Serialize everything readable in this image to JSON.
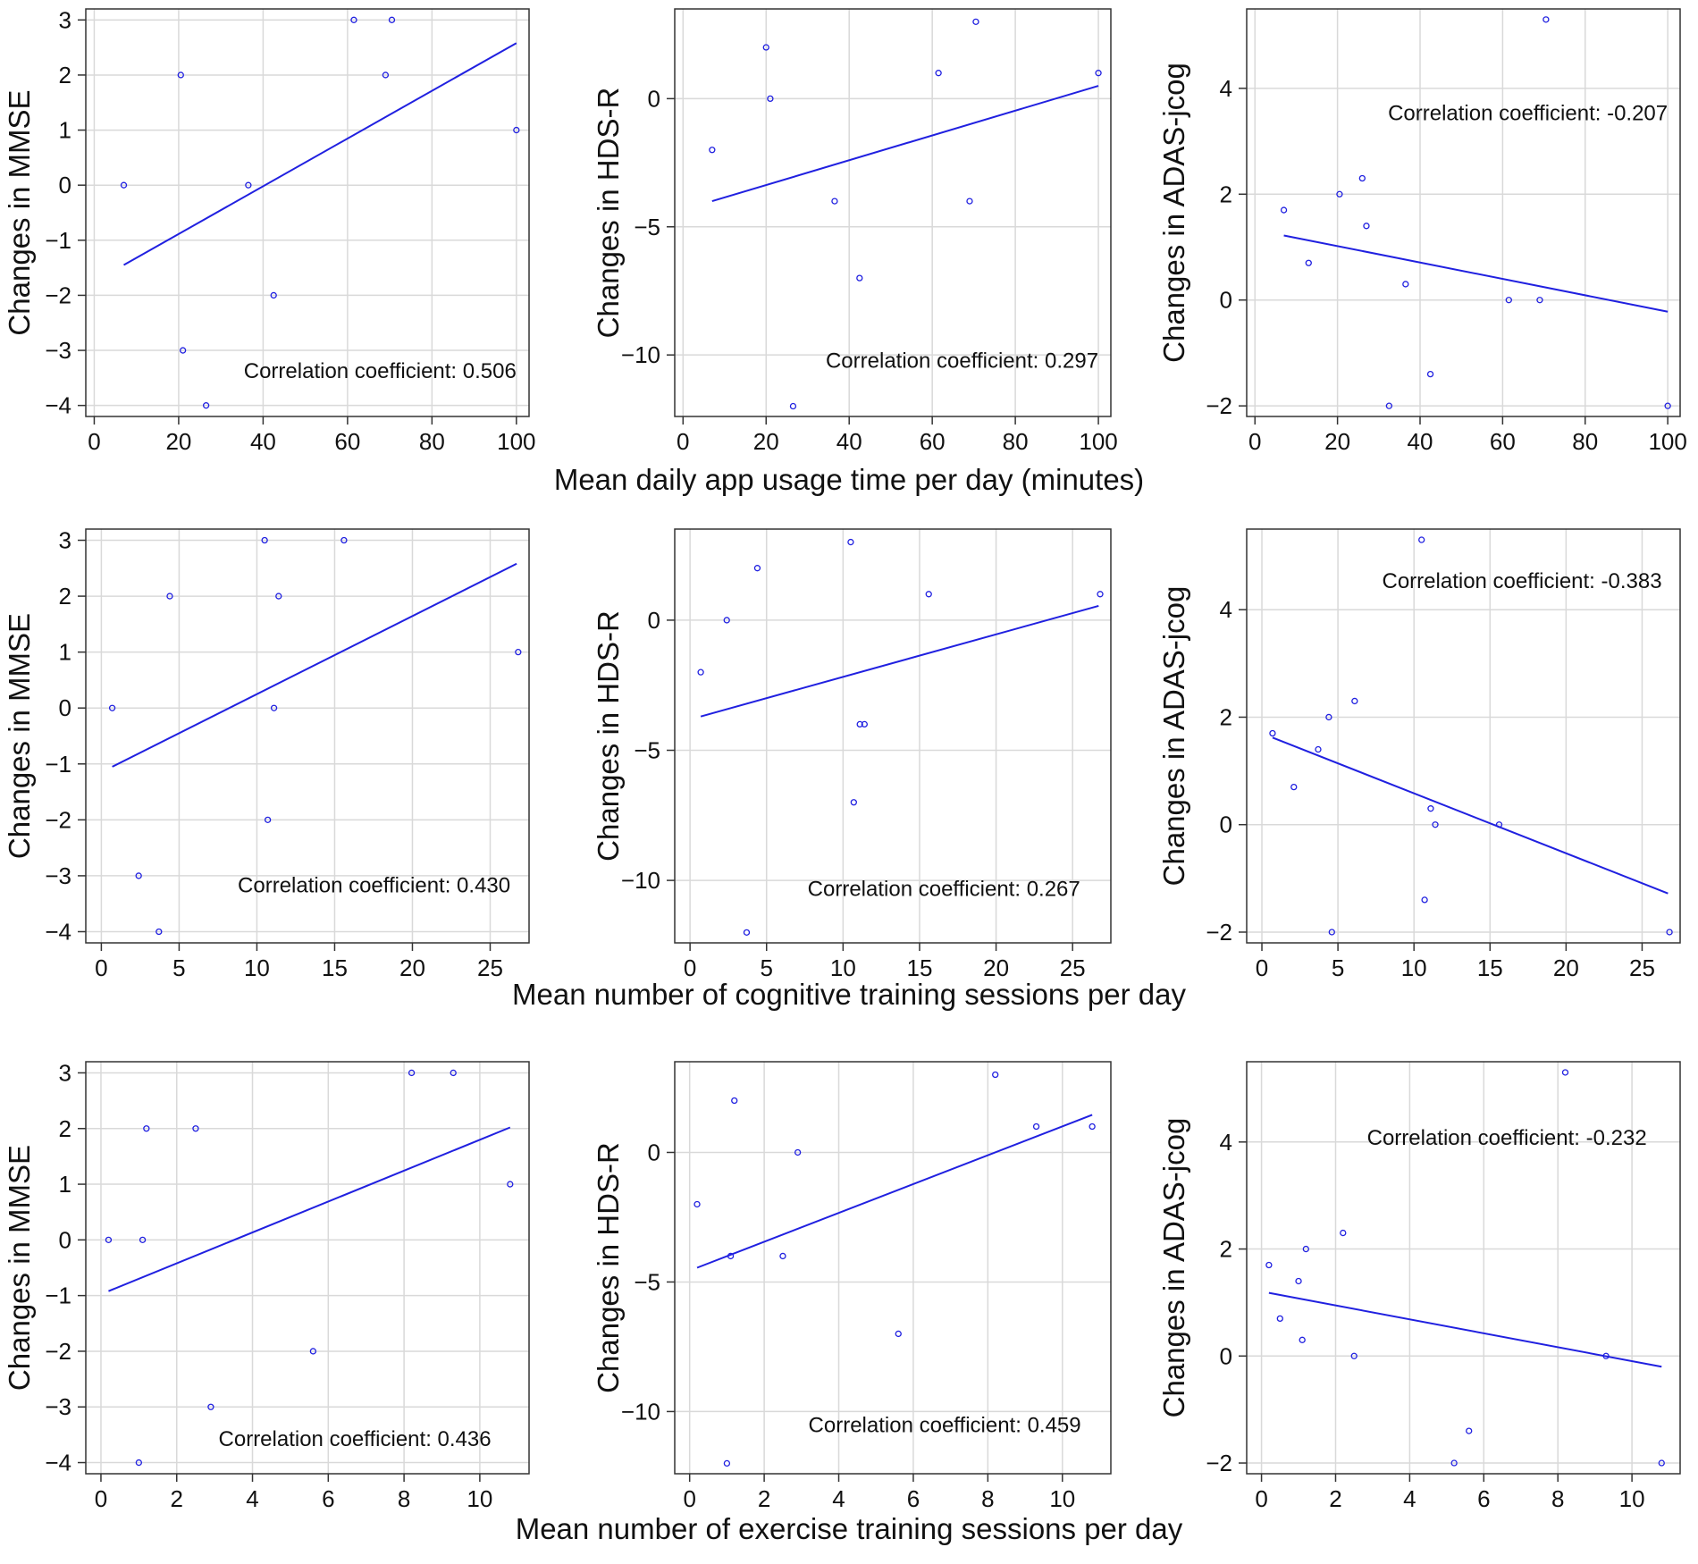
{
  "figure": {
    "row_xlabels": [
      "Mean daily app usage time per day (minutes)",
      "Mean number of cognitive training sessions per day",
      "Mean number of exercise training sessions per day"
    ]
  },
  "colors": {
    "data": "#2020e0",
    "grid": "#d9d9d9",
    "frame": "#333333"
  },
  "chart_data": [
    {
      "type": "scatter",
      "row": 0,
      "col": 0,
      "ylabel": "Changes in MMSE",
      "xlim": [
        -2,
        103
      ],
      "ylim": [
        -4.2,
        3.2
      ],
      "xticks": [
        0,
        20,
        40,
        60,
        80,
        100
      ],
      "yticks": [
        -4,
        -3,
        -2,
        -1,
        0,
        1,
        2,
        3
      ],
      "points": [
        [
          7,
          0
        ],
        [
          20.5,
          2
        ],
        [
          21,
          -3
        ],
        [
          26.5,
          -4
        ],
        [
          36.5,
          0
        ],
        [
          42.5,
          -2
        ],
        [
          61.5,
          3
        ],
        [
          69,
          2
        ],
        [
          70.5,
          3
        ],
        [
          100,
          1
        ]
      ],
      "fit": [
        [
          7,
          -1.45
        ],
        [
          100,
          2.58
        ]
      ],
      "annotation": "Correlation coefficient: 0.506",
      "annotation_pos": [
        100,
        -3.5
      ]
    },
    {
      "type": "scatter",
      "row": 0,
      "col": 1,
      "ylabel": "Changes in HDS-R",
      "xlim": [
        -2,
        103
      ],
      "ylim": [
        -12.4,
        3.5
      ],
      "xticks": [
        0,
        20,
        40,
        60,
        80,
        100
      ],
      "yticks": [
        -10,
        -5,
        0
      ],
      "points": [
        [
          7,
          -2
        ],
        [
          20,
          2
        ],
        [
          21,
          0
        ],
        [
          26.5,
          -12
        ],
        [
          36.5,
          -4
        ],
        [
          42.5,
          -7
        ],
        [
          61.5,
          1
        ],
        [
          69,
          -4
        ],
        [
          70.5,
          3
        ],
        [
          100,
          1
        ]
      ],
      "fit": [
        [
          7,
          -4
        ],
        [
          100,
          0.5
        ]
      ],
      "annotation": "Correlation coefficient: 0.297",
      "annotation_pos": [
        100,
        -10.5
      ]
    },
    {
      "type": "scatter",
      "row": 0,
      "col": 2,
      "ylabel": "Changes in ADAS-jcog",
      "xlim": [
        -2,
        103
      ],
      "ylim": [
        -2.2,
        5.5
      ],
      "xticks": [
        0,
        20,
        40,
        60,
        80,
        100
      ],
      "yticks": [
        -2,
        0,
        2,
        4
      ],
      "points": [
        [
          7,
          1.7
        ],
        [
          13,
          0.7
        ],
        [
          20.5,
          2
        ],
        [
          26,
          2.3
        ],
        [
          27,
          1.4
        ],
        [
          32.5,
          -2
        ],
        [
          36.5,
          0.3
        ],
        [
          42.5,
          -1.4
        ],
        [
          61.5,
          0
        ],
        [
          69,
          0
        ],
        [
          70.5,
          5.3
        ],
        [
          100,
          -2
        ]
      ],
      "fit": [
        [
          7,
          1.22
        ],
        [
          100,
          -0.22
        ]
      ],
      "annotation": "Correlation coefficient: -0.207",
      "annotation_pos": [
        100,
        3.4
      ]
    },
    {
      "type": "scatter",
      "row": 1,
      "col": 0,
      "ylabel": "Changes in MMSE",
      "xlim": [
        -1,
        27.5
      ],
      "ylim": [
        -4.2,
        3.2
      ],
      "xticks": [
        0,
        5,
        10,
        15,
        20,
        25
      ],
      "yticks": [
        -4,
        -3,
        -2,
        -1,
        0,
        1,
        2,
        3
      ],
      "points": [
        [
          0.7,
          0
        ],
        [
          2.4,
          -3
        ],
        [
          3.7,
          -4
        ],
        [
          4.4,
          2
        ],
        [
          10.5,
          3
        ],
        [
          10.7,
          -2
        ],
        [
          11.1,
          0
        ],
        [
          11.4,
          2
        ],
        [
          15.6,
          3
        ],
        [
          26.8,
          1
        ]
      ],
      "fit": [
        [
          0.7,
          -1.05
        ],
        [
          26.7,
          2.58
        ]
      ],
      "annotation": "Correlation coefficient: 0.430",
      "annotation_pos": [
        26.3,
        -3.3
      ]
    },
    {
      "type": "scatter",
      "row": 1,
      "col": 1,
      "ylabel": "Changes in HDS-R",
      "xlim": [
        -1,
        27.5
      ],
      "ylim": [
        -12.4,
        3.5
      ],
      "xticks": [
        0,
        5,
        10,
        15,
        20,
        25
      ],
      "yticks": [
        -10,
        -5,
        0
      ],
      "points": [
        [
          0.7,
          -2
        ],
        [
          2.4,
          0
        ],
        [
          3.7,
          -12
        ],
        [
          4.4,
          2
        ],
        [
          10.5,
          3
        ],
        [
          10.7,
          -7
        ],
        [
          11.1,
          -4
        ],
        [
          11.4,
          -4
        ],
        [
          15.6,
          1
        ],
        [
          26.8,
          1
        ]
      ],
      "fit": [
        [
          0.7,
          -3.7
        ],
        [
          26.7,
          0.55
        ]
      ],
      "annotation": "Correlation coefficient: 0.267",
      "annotation_pos": [
        25.5,
        -10.6
      ]
    },
    {
      "type": "scatter",
      "row": 1,
      "col": 2,
      "ylabel": "Changes in ADAS-jcog",
      "xlim": [
        -1,
        27.5
      ],
      "ylim": [
        -2.2,
        5.5
      ],
      "xticks": [
        0,
        5,
        10,
        15,
        20,
        25
      ],
      "yticks": [
        -2,
        0,
        2,
        4
      ],
      "points": [
        [
          0.7,
          1.7
        ],
        [
          2.1,
          0.7
        ],
        [
          3.7,
          1.4
        ],
        [
          4.4,
          2
        ],
        [
          4.6,
          -2
        ],
        [
          6.1,
          2.3
        ],
        [
          10.5,
          5.3
        ],
        [
          10.7,
          -1.4
        ],
        [
          11.1,
          0.3
        ],
        [
          11.4,
          0
        ],
        [
          15.6,
          0
        ],
        [
          26.8,
          -2
        ]
      ],
      "fit": [
        [
          0.7,
          1.62
        ],
        [
          26.7,
          -1.28
        ]
      ],
      "annotation": "Correlation coefficient: -0.383",
      "annotation_pos": [
        26.3,
        4.4
      ]
    },
    {
      "type": "scatter",
      "row": 2,
      "col": 0,
      "ylabel": "Changes in MMSE",
      "xlim": [
        -0.4,
        11.3
      ],
      "ylim": [
        -4.2,
        3.2
      ],
      "xticks": [
        0,
        2,
        4,
        6,
        8,
        10
      ],
      "yticks": [
        -4,
        -3,
        -2,
        -1,
        0,
        1,
        2,
        3
      ],
      "points": [
        [
          0.2,
          0
        ],
        [
          1,
          -4
        ],
        [
          1.1,
          0
        ],
        [
          1.2,
          2
        ],
        [
          2.5,
          2
        ],
        [
          2.9,
          -3
        ],
        [
          5.6,
          -2
        ],
        [
          8.2,
          3
        ],
        [
          9.3,
          3
        ],
        [
          10.8,
          1
        ]
      ],
      "fit": [
        [
          0.2,
          -0.92
        ],
        [
          10.8,
          2.02
        ]
      ],
      "annotation": "Correlation coefficient: 0.436",
      "annotation_pos": [
        10.3,
        -3.7
      ]
    },
    {
      "type": "scatter",
      "row": 2,
      "col": 1,
      "ylabel": "Changes in HDS-R",
      "xlim": [
        -0.4,
        11.3
      ],
      "ylim": [
        -12.4,
        3.5
      ],
      "xticks": [
        0,
        2,
        4,
        6,
        8,
        10
      ],
      "yticks": [
        -10,
        -5,
        0
      ],
      "points": [
        [
          0.2,
          -2
        ],
        [
          1,
          -12
        ],
        [
          1.1,
          -4
        ],
        [
          1.2,
          2
        ],
        [
          2.5,
          -4
        ],
        [
          2.9,
          0
        ],
        [
          5.6,
          -7
        ],
        [
          8.2,
          3
        ],
        [
          9.3,
          1
        ],
        [
          10.8,
          1
        ]
      ],
      "fit": [
        [
          0.2,
          -4.45
        ],
        [
          10.8,
          1.45
        ]
      ],
      "annotation": "Correlation coefficient: 0.459",
      "annotation_pos": [
        10.5,
        -10.8
      ]
    },
    {
      "type": "scatter",
      "row": 2,
      "col": 2,
      "ylabel": "Changes in ADAS-jcog",
      "xlim": [
        -0.4,
        11.3
      ],
      "ylim": [
        -2.2,
        5.5
      ],
      "xticks": [
        0,
        2,
        4,
        6,
        8,
        10
      ],
      "yticks": [
        -2,
        0,
        2,
        4
      ],
      "points": [
        [
          0.2,
          1.7
        ],
        [
          0.5,
          0.7
        ],
        [
          1,
          1.4
        ],
        [
          1.1,
          0.3
        ],
        [
          1.2,
          2
        ],
        [
          2.2,
          2.3
        ],
        [
          2.5,
          0
        ],
        [
          5.2,
          -2
        ],
        [
          5.6,
          -1.4
        ],
        [
          8.2,
          5.3
        ],
        [
          9.3,
          0
        ],
        [
          10.8,
          -2
        ]
      ],
      "fit": [
        [
          0.2,
          1.18
        ],
        [
          10.8,
          -0.2
        ]
      ],
      "annotation": "Correlation coefficient: -0.232",
      "annotation_pos": [
        10.4,
        3.95
      ]
    }
  ]
}
